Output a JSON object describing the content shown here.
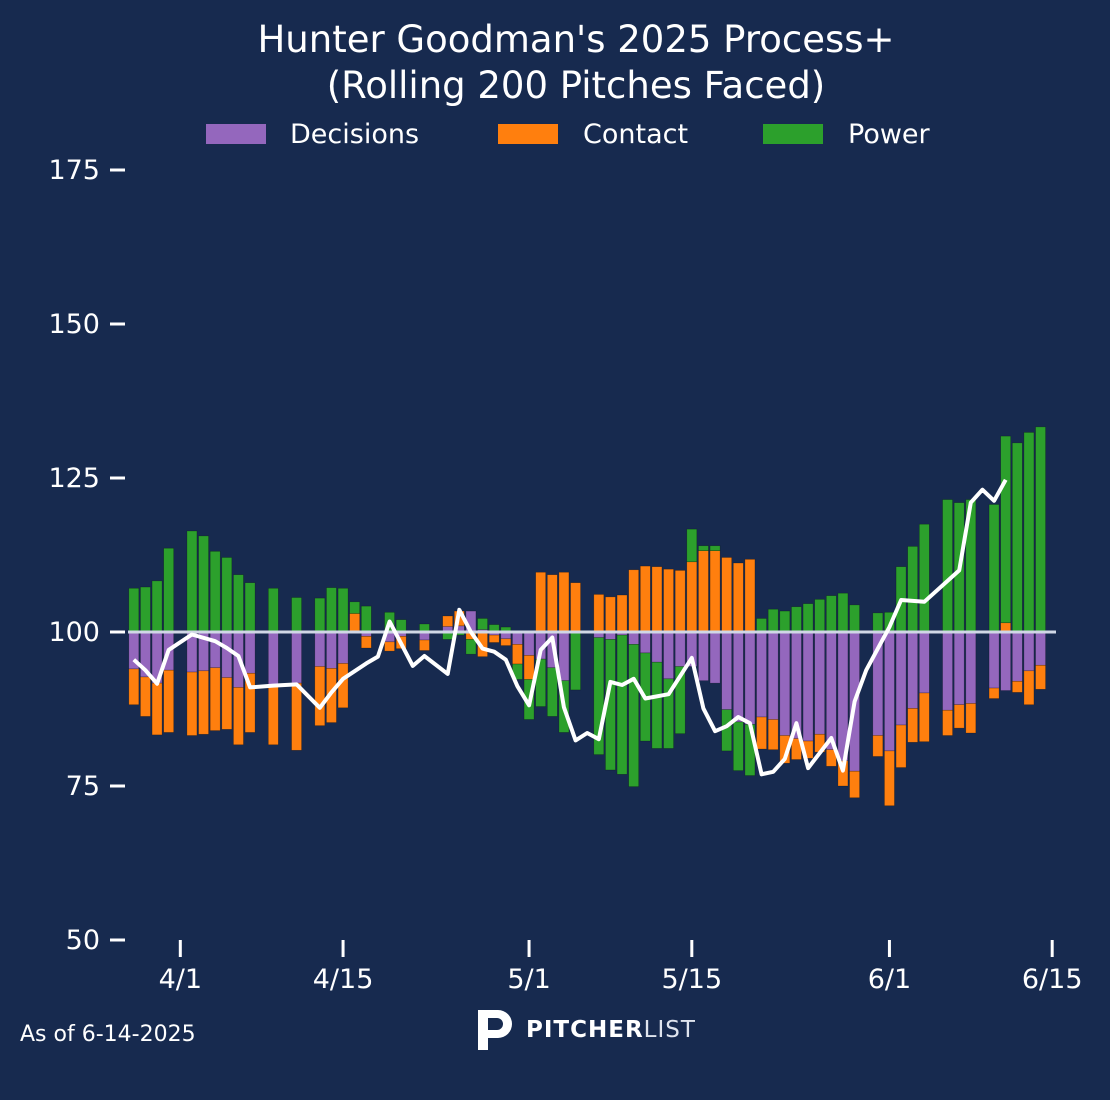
{
  "chart_data": {
    "type": "bar",
    "title_lines": [
      "Hunter Goodman's 2025 Process+",
      "(Rolling 200 Pitches Faced)"
    ],
    "baseline": 100,
    "ylim": [
      50,
      175
    ],
    "yticks": [
      50,
      75,
      100,
      125,
      150,
      175
    ],
    "xticks": [
      {
        "label": "4/1",
        "day": 5
      },
      {
        "label": "4/15",
        "day": 19
      },
      {
        "label": "5/1",
        "day": 35
      },
      {
        "label": "5/15",
        "day": 49
      },
      {
        "label": "6/1",
        "day": 66
      },
      {
        "label": "6/15",
        "day": 80
      }
    ],
    "xlim": [
      0.5,
      80.5
    ],
    "legend": {
      "placement": "top-center",
      "items": [
        {
          "label": "Decisions",
          "color": "#9467bd"
        },
        {
          "label": "Contact",
          "color": "#ff7f0e"
        },
        {
          "label": "Power",
          "color": "#2ca02c"
        }
      ]
    },
    "colors": {
      "decisions": "#9467bd",
      "contact": "#ff7f0e",
      "power": "#2ca02c",
      "line": "#ffffff",
      "baseline": "#d0d7e6",
      "background": "#172a4f"
    },
    "series_order": [
      "decisions",
      "contact",
      "power"
    ],
    "days": [
      1,
      2,
      3,
      4,
      6,
      7,
      8,
      9,
      10,
      11,
      13,
      15,
      17,
      18,
      19,
      20,
      21,
      23,
      24,
      26,
      28,
      29,
      30,
      31,
      32,
      33,
      34,
      35,
      36,
      37,
      38,
      39,
      41,
      42,
      43,
      44,
      45,
      46,
      47,
      48,
      49,
      50,
      51,
      52,
      53,
      54,
      55,
      56,
      57,
      58,
      59,
      60,
      61,
      62,
      63,
      65,
      66,
      67,
      68,
      69,
      71,
      72,
      73,
      75,
      76,
      77,
      78,
      79
    ],
    "decisions": [
      -6,
      -7.3,
      -8.3,
      -6.2,
      -6.5,
      -6.3,
      -5.8,
      -7.4,
      -9,
      -6.7,
      -8.5,
      -8.3,
      -5.6,
      -5.9,
      -5.1,
      0.2,
      -0.7,
      -1.6,
      -0.7,
      -1.3,
      0.9,
      1,
      3.4,
      0.4,
      -0.5,
      -1.1,
      -2,
      -3.8,
      -4.4,
      -5.8,
      -7.9,
      0,
      -0.9,
      -1.2,
      -0.5,
      -2,
      -3.4,
      -4.9,
      -7.6,
      -5.6,
      -5.6,
      -7.9,
      -8.3,
      -12.6,
      -14.6,
      -15,
      -13.8,
      -14.2,
      -16.8,
      -17.3,
      -17.7,
      -16.6,
      -19.1,
      -20.9,
      -22.6,
      -16.8,
      -19.3,
      -15.1,
      -12.4,
      -9.9,
      -12.7,
      -11.8,
      -11.6,
      -9.1,
      -9.5,
      -8.0,
      -6.3,
      -5.4
    ],
    "contact": [
      -5.8,
      -6.4,
      -8.4,
      -10.1,
      -10.3,
      -10.3,
      -10.2,
      -8.4,
      -9.3,
      -9.6,
      -9.8,
      -10.9,
      -9.6,
      -8.8,
      -7.2,
      2.8,
      -1.9,
      -1.5,
      -2,
      -1.7,
      1.7,
      2.4,
      -1.2,
      -4,
      -1.2,
      -1.1,
      -3.2,
      -3.9,
      9.7,
      9.3,
      9.7,
      8,
      6.1,
      5.7,
      6,
      10.1,
      10.7,
      10.6,
      10.2,
      10,
      11.4,
      13.2,
      13.2,
      12.1,
      11.2,
      11.8,
      -5.2,
      -4.9,
      -4.5,
      -3.4,
      -2.8,
      -2.9,
      -2.7,
      -4.1,
      -4.3,
      -3.4,
      -8.9,
      -6.9,
      -5.5,
      -7.9,
      -4.1,
      -3.8,
      -4.8,
      -1.7,
      1.5,
      -1.8,
      -5.5,
      -3.9
    ],
    "power": [
      7.1,
      7.3,
      8.3,
      13.6,
      16.4,
      15.6,
      13.1,
      12.1,
      9.3,
      8.0,
      7.1,
      5.6,
      5.5,
      7.2,
      7.1,
      1.9,
      4.2,
      3.2,
      2.0,
      1.3,
      -1.2,
      -0.5,
      -2.4,
      1.8,
      1.2,
      0.8,
      -2.5,
      -6.5,
      -7.7,
      -7.9,
      -8.4,
      -9.4,
      -19,
      -21.2,
      -22.6,
      -23.1,
      -14.3,
      -14,
      -11.3,
      -10.9,
      5.3,
      0.8,
      0.8,
      -6.7,
      -7.9,
      -8.3,
      2.2,
      3.7,
      3.4,
      4.1,
      4.6,
      5.3,
      5.9,
      6.3,
      4.4,
      3.1,
      3.2,
      10.6,
      13.9,
      17.5,
      21.5,
      21.0,
      21.5,
      20.7,
      30.3,
      30.7,
      32.4,
      33.3
    ],
    "process_plus": [
      95.5,
      93.8,
      91.6,
      97.1,
      99.6,
      98.5,
      97.4,
      96.1,
      91.0,
      91.3,
      91.5,
      87.7,
      90.2,
      92.4,
      94.9,
      96.0,
      101.7,
      94.5,
      96.1,
      93.2,
      103.6,
      100.0,
      97.3,
      96.8,
      95.5,
      91.2,
      88.1,
      97.1,
      99.1,
      87.8,
      82.4,
      83.6,
      82.6,
      91.9,
      91.4,
      92.4,
      89.2,
      89.9,
      95.8,
      87.6,
      83.9,
      84.7,
      86.2,
      85.2,
      76.9,
      77.3,
      79.4,
      85.2,
      77.9,
      82.8,
      77.5,
      88.7,
      93.8,
      100.8,
      105.2,
      104.9,
      110.0,
      121.0,
      123.1,
      121.3,
      124.7
    ]
  },
  "line_days": [
    1,
    2,
    3,
    4,
    6,
    8,
    9,
    10,
    11,
    13,
    15,
    17,
    18,
    19,
    21,
    22,
    23,
    25,
    26,
    28,
    29,
    30,
    31,
    32,
    33,
    34,
    35,
    36,
    37,
    38,
    39,
    40,
    41,
    42,
    43,
    44,
    45,
    47,
    49,
    50,
    51,
    52,
    53,
    54,
    55,
    56,
    57,
    58,
    59,
    61,
    62,
    63,
    64,
    66,
    67,
    69,
    72,
    73,
    74,
    75,
    76
  ],
  "footnote": "As of 6-14-2025",
  "brand": {
    "bold": "PITCHER",
    "light": "LIST"
  }
}
